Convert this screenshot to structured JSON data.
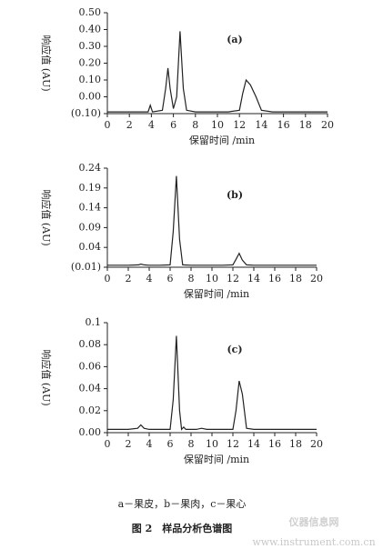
{
  "chart_data": [
    {
      "type": "line",
      "panel_label": "(a)",
      "y_label": "响应值 (AU)",
      "x_label": "保留时间 /min",
      "color": "#222222",
      "xlim": [
        0,
        20
      ],
      "xticks": [
        0,
        2,
        4,
        6,
        8,
        10,
        12,
        14,
        16,
        18,
        20
      ],
      "ylim": [
        -0.1,
        0.5
      ],
      "yticks": [
        {
          "value": -0.1,
          "label": "(0.10)"
        },
        {
          "value": 0,
          "label": "0.00"
        },
        {
          "value": 0.1,
          "label": "0.10"
        },
        {
          "value": 0.2,
          "label": "0.20"
        },
        {
          "value": 0.3,
          "label": "0.30"
        },
        {
          "value": 0.4,
          "label": "0.40"
        },
        {
          "value": 0.5,
          "label": "0.50"
        }
      ],
      "x": [
        0,
        1,
        2,
        3,
        3.7,
        3.9,
        4.1,
        5,
        5.3,
        5.5,
        5.7,
        6,
        6.3,
        6.6,
        6.9,
        7.2,
        8,
        9,
        10,
        11,
        12,
        12.3,
        12.6,
        13,
        13.5,
        14,
        15,
        16,
        17,
        18,
        19,
        20
      ],
      "values": [
        -0.09,
        -0.09,
        -0.09,
        -0.09,
        -0.09,
        -0.05,
        -0.09,
        -0.08,
        0.05,
        0.17,
        0.05,
        -0.07,
        0.0,
        0.39,
        0.05,
        -0.08,
        -0.09,
        -0.09,
        -0.09,
        -0.09,
        -0.08,
        0.02,
        0.1,
        0.07,
        0.0,
        -0.08,
        -0.09,
        -0.09,
        -0.09,
        -0.09,
        -0.09,
        -0.09
      ]
    },
    {
      "type": "line",
      "panel_label": "(b)",
      "y_label": "响应值 (AU)",
      "x_label": "保留时间 /min",
      "color": "#222222",
      "xlim": [
        0,
        20
      ],
      "xticks": [
        0,
        2,
        4,
        6,
        8,
        10,
        12,
        14,
        16,
        18,
        20
      ],
      "ylim": [
        -0.01,
        0.24
      ],
      "yticks": [
        {
          "value": -0.01,
          "label": "(0.01)"
        },
        0.04,
        0.09,
        0.14,
        0.19,
        0.24
      ],
      "x": [
        0,
        1,
        2,
        3,
        3.2,
        3.5,
        4,
        5,
        6,
        6.3,
        6.6,
        6.9,
        7.2,
        8,
        9,
        10,
        11,
        12,
        12.3,
        12.6,
        12.9,
        13.3,
        14,
        15,
        16,
        17,
        18,
        19,
        20
      ],
      "values": [
        -0.005,
        -0.005,
        -0.005,
        -0.004,
        -0.002,
        -0.004,
        -0.005,
        -0.005,
        -0.004,
        0.08,
        0.22,
        0.06,
        -0.004,
        -0.005,
        -0.005,
        -0.005,
        -0.005,
        -0.004,
        0.01,
        0.025,
        0.008,
        -0.004,
        -0.005,
        -0.005,
        -0.005,
        -0.005,
        -0.005,
        -0.005,
        -0.005
      ]
    },
    {
      "type": "line",
      "panel_label": "(c)",
      "y_label": "响应值 (AU)",
      "x_label": "保留时间 /min",
      "color": "#222222",
      "xlim": [
        0,
        20
      ],
      "xticks": [
        0,
        2,
        4,
        6,
        8,
        10,
        12,
        14,
        16,
        18,
        20
      ],
      "ylim": [
        0,
        0.1
      ],
      "yticks": [
        {
          "value": 0,
          "label": "0.00"
        },
        {
          "value": 0.02,
          "label": "0.02"
        },
        {
          "value": 0.04,
          "label": "0.04"
        },
        {
          "value": 0.06,
          "label": "0.06"
        },
        {
          "value": 0.08,
          "label": "0.08"
        },
        0.1
      ],
      "x": [
        0,
        1,
        2,
        2.9,
        3.2,
        3.5,
        4,
        5,
        6,
        6.3,
        6.6,
        6.9,
        7.1,
        7.3,
        7.5,
        8,
        8.5,
        9,
        9.5,
        10,
        11,
        12,
        12.3,
        12.6,
        12.9,
        13.3,
        14,
        15,
        16,
        17,
        18,
        19,
        20
      ],
      "values": [
        0.003,
        0.003,
        0.003,
        0.004,
        0.007,
        0.004,
        0.003,
        0.003,
        0.003,
        0.03,
        0.088,
        0.02,
        0.003,
        0.005,
        0.003,
        0.003,
        0.003,
        0.004,
        0.003,
        0.003,
        0.003,
        0.003,
        0.02,
        0.047,
        0.035,
        0.004,
        0.003,
        0.003,
        0.003,
        0.003,
        0.003,
        0.003,
        0.003
      ]
    }
  ],
  "caption": {
    "legend": "a－果皮，b－果肉，c－果心",
    "title": "图 2　样品分析色谱图"
  },
  "watermark": {
    "name": "仪器信息网",
    "url": "www.instrument.com.cn"
  }
}
